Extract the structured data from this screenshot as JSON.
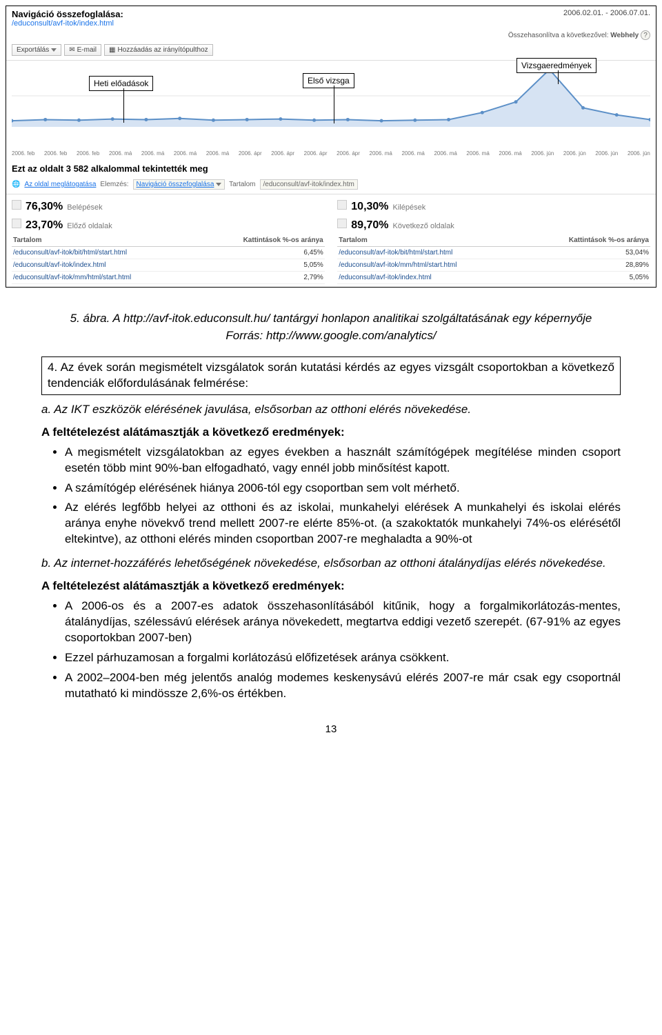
{
  "analytics": {
    "nav_title": "Navigáció összefoglalása:",
    "nav_path": "/educonsult/avf-itok/index.html",
    "date_range": "2006.02.01. - 2006.07.01.",
    "compare_label": "Összehasonlítva a következővel:",
    "compare_value": "Webhely",
    "toolbar": {
      "export": "Exportálás",
      "email": "E-mail",
      "add_dashboard": "Hozzáadás az irányítópulthoz"
    },
    "callouts": {
      "c1": "Heti előadások",
      "c2": "Első vizsga",
      "c3": "Vizsgaeredmények"
    },
    "chart": {
      "type": "line",
      "line_color": "#5b8fc7",
      "fill_color": "#d6e3f3",
      "marker_color": "#5b8fc7",
      "grid_color": "#e5e5e5",
      "background_color": "#ffffff",
      "x_labels": [
        "2006. feb",
        "2006. feb",
        "2006. feb",
        "2006. má",
        "2006. má",
        "2006. má",
        "2006. má",
        "2006. ápr",
        "2006. ápr",
        "2006. ápr",
        "2006. ápr",
        "2006. má",
        "2006. má",
        "2006. má",
        "2006. má",
        "2006. má",
        "2006. jún",
        "2006. jún",
        "2006. jún",
        "2006. jún"
      ],
      "values": [
        8,
        10,
        9,
        11,
        10,
        12,
        9,
        10,
        11,
        9,
        10,
        8,
        9,
        10,
        22,
        40,
        95,
        30,
        18,
        10
      ],
      "ylim": [
        0,
        100
      ]
    },
    "summary_prefix": "Ezt az oldalt ",
    "summary_count": "3 582",
    "summary_suffix": " alkalommal tekintették meg",
    "breadcrumb": {
      "view_page": "Az oldal meglátogatása",
      "browse_label": "Elemzés:",
      "browse_link": "Navigáció összefoglalása",
      "content_label": "Tartalom",
      "content_value": "/educonsult/avf-itok/index.htm"
    },
    "left_stats": {
      "s1_pct": "76,30%",
      "s1_label": "Belépések",
      "s2_pct": "23,70%",
      "s2_label": "Előző oldalak",
      "th1": "Tartalom",
      "th2": "Kattintások %-os aránya",
      "rows": [
        {
          "path": "/educonsult/avf-itok/bit/html/start.html",
          "pct": "6,45%"
        },
        {
          "path": "/educonsult/avf-itok/index.html",
          "pct": "5,05%"
        },
        {
          "path": "/educonsult/avf-itok/mm/html/start.html",
          "pct": "2,79%"
        }
      ]
    },
    "right_stats": {
      "s1_pct": "10,30%",
      "s1_label": "Kilépések",
      "s2_pct": "89,70%",
      "s2_label": "Következő oldalak",
      "th1": "Tartalom",
      "th2": "Kattintások %-os aránya",
      "rows": [
        {
          "path": "/educonsult/avf-itok/bit/html/start.html",
          "pct": "53,04%"
        },
        {
          "path": "/educonsult/avf-itok/mm/html/start.html",
          "pct": "28,89%"
        },
        {
          "path": "/educonsult/avf-itok/index.html",
          "pct": "5,05%"
        }
      ]
    }
  },
  "doc": {
    "caption1": "5. ábra. A http://avf-itok.educonsult.hu/ tantárgyi honlapon analitikai szolgáltatásának egy képernyője",
    "caption2": "Forrás: http://www.google.com/analytics/",
    "box4": "4. Az évek során megismételt vizsgálatok során kutatási kérdés az egyes vizsgált csoportokban a következő tendenciák előfordulásának felmérése:",
    "item_a": "a. Az IKT eszközök elérésének javulása, elsősorban az otthoni elérés növekedése.",
    "sub1": "A feltételezést alátámasztják a következő eredmények:",
    "bullets1": [
      "A megismételt vizsgálatokban az egyes években a használt számítógépek megítélése minden csoport esetén több mint 90%-ban elfogadható, vagy ennél jobb minősítést kapott.",
      "A számítógép elérésének hiánya 2006-tól egy csoportban sem volt mérhető.",
      "Az elérés legfőbb helyei az otthoni és az iskolai, munkahelyi elérések A munkahelyi és iskolai elérés aránya enyhe növekvő trend mellett 2007-re elérte 85%-ot. (a szakoktatók munkahelyi 74%-os elérésétől eltekintve), az otthoni elérés minden csoportban 2007-re meghaladta a 90%-ot"
    ],
    "item_b": "b. Az internet-hozzáférés lehetőségének növekedése, elsősorban az otthoni átalánydíjas elérés növekedése.",
    "sub2": "A feltételezést alátámasztják a következő eredmények:",
    "bullets2": [
      "A 2006-os és a 2007-es adatok összehasonlításából kitűnik, hogy a forgalmikorlátozás-mentes, átalánydíjas, szélessávú elérések aránya növekedett, megtartva eddigi vezető szerepét. (67-91% az egyes csoportokban 2007-ben)",
      "Ezzel párhuzamosan a forgalmi korlátozású előfizetések aránya csökkent.",
      "A 2002–2004-ben még jelentős analóg modemes keskenysávú elérés 2007-re már csak egy csoportnál mutatható ki mindössze 2,6%-os értékben."
    ],
    "page": "13"
  }
}
